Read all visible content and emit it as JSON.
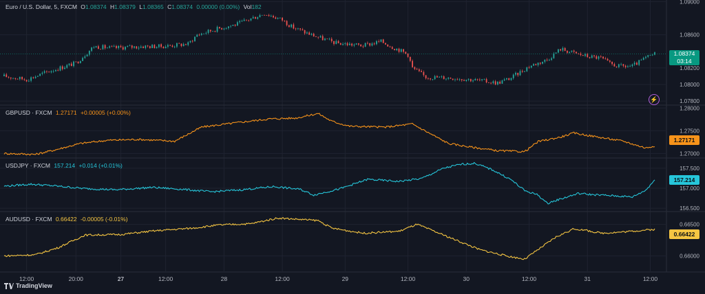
{
  "legend": {
    "eurusd": {
      "title": "Euro / U.S. Dollar, 5, FXCM",
      "O": "O",
      "o": "1.08374",
      "H": "H",
      "h": "1.08379",
      "L": "L",
      "l": "1.08365",
      "C": "C",
      "c": "1.08374",
      "chg": "0.00000 (0.00%)",
      "vol_label": "Vol",
      "vol": "182"
    },
    "gbpusd": {
      "title": "GBPUSD · FXCM",
      "price": "1.27171",
      "chg": "+0.00005 (+0.00%)"
    },
    "usdjpy": {
      "title": "USDJPY · FXCM",
      "price": "157.214",
      "chg": "+0.014 (+0.01%)"
    },
    "audusd": {
      "title": "AUDUSD · FXCM",
      "price": "0.66422",
      "chg": "-0.00005 (-0.01%)"
    }
  },
  "price_badges": {
    "eurusd": {
      "price": "1.08374",
      "timer": "03:14",
      "color": "#089981"
    },
    "gbpusd": {
      "price": "1.27171",
      "color": "#f7931a"
    },
    "usdjpy": {
      "price": "157.214",
      "color": "#26c6da"
    },
    "audusd": {
      "price": "0.66422",
      "color": "#f5c542"
    }
  },
  "branding": "TradingView",
  "chart_data": [
    {
      "type": "candlestick",
      "name": "EURUSD",
      "yticks": [
        "1.09000",
        "1.08600",
        "1.08200",
        "1.08000",
        "1.07800"
      ],
      "ytick_values": [
        1.09,
        1.086,
        1.082,
        1.08,
        1.078
      ],
      "ylim": [
        1.0776,
        1.0902
      ],
      "values": [
        [
          0,
          1.081
        ],
        [
          5,
          1.0806
        ],
        [
          10,
          1.0816
        ],
        [
          16,
          1.0826
        ],
        [
          20,
          1.0846
        ],
        [
          24,
          1.0844
        ],
        [
          27,
          1.0845
        ],
        [
          31,
          1.0846
        ],
        [
          35,
          1.0846
        ],
        [
          41,
          1.0849
        ],
        [
          43,
          1.086
        ],
        [
          48,
          1.0868
        ],
        [
          52,
          1.0873
        ],
        [
          58,
          1.0886
        ],
        [
          62,
          1.0878
        ],
        [
          64,
          1.087
        ],
        [
          67,
          1.0863
        ],
        [
          70,
          1.0857
        ],
        [
          74,
          1.085
        ],
        [
          80,
          1.0847
        ],
        [
          84,
          1.0852
        ],
        [
          87,
          1.0844
        ],
        [
          88,
          1.0842
        ],
        [
          90,
          1.0836
        ],
        [
          91,
          1.082
        ],
        [
          94,
          1.0809
        ],
        [
          100,
          1.0808
        ],
        [
          104,
          1.0806
        ],
        [
          110,
          1.0802
        ],
        [
          113,
          1.0808
        ],
        [
          117,
          1.0822
        ],
        [
          121,
          1.083
        ],
        [
          124,
          1.0843
        ],
        [
          127,
          1.0838
        ],
        [
          130,
          1.0834
        ],
        [
          133,
          1.0832
        ],
        [
          135,
          1.0825
        ],
        [
          137,
          1.0822
        ],
        [
          140,
          1.0822
        ],
        [
          143,
          1.0832
        ],
        [
          145,
          1.0837
        ]
      ],
      "color_up": "#26a69a",
      "color_down": "#ef5350"
    },
    {
      "type": "line",
      "name": "GBPUSD",
      "color": "#f7931a",
      "yticks": [
        "1.28000",
        "1.27500",
        "1.27000"
      ],
      "ytick_values": [
        1.28,
        1.275,
        1.27
      ],
      "ylim": [
        1.2693,
        1.2805
      ],
      "values": [
        [
          0,
          1.27
        ],
        [
          7,
          1.2698
        ],
        [
          11,
          1.2707
        ],
        [
          17,
          1.2722
        ],
        [
          23,
          1.2729
        ],
        [
          30,
          1.2731
        ],
        [
          38,
          1.2727
        ],
        [
          44,
          1.2758
        ],
        [
          52,
          1.2768
        ],
        [
          59,
          1.2776
        ],
        [
          65,
          1.2778
        ],
        [
          70,
          1.2788
        ],
        [
          73,
          1.2771
        ],
        [
          77,
          1.276
        ],
        [
          85,
          1.2758
        ],
        [
          91,
          1.2765
        ],
        [
          96,
          1.2738
        ],
        [
          99,
          1.2722
        ],
        [
          104,
          1.2714
        ],
        [
          110,
          1.2706
        ],
        [
          116,
          1.2704
        ],
        [
          119,
          1.2726
        ],
        [
          124,
          1.2736
        ],
        [
          127,
          1.2745
        ],
        [
          130,
          1.274
        ],
        [
          133,
          1.2735
        ],
        [
          138,
          1.2727
        ],
        [
          143,
          1.2712
        ],
        [
          145,
          1.2717
        ]
      ]
    },
    {
      "type": "line",
      "name": "USDJPY",
      "color": "#26c6da",
      "yticks": [
        "157.500",
        "157.000",
        "156.500"
      ],
      "ytick_values": [
        157.5,
        157.0,
        156.5
      ],
      "ylim": [
        156.45,
        157.72
      ],
      "values": [
        [
          0,
          157.05
        ],
        [
          6,
          157.1
        ],
        [
          11,
          157.06
        ],
        [
          18,
          156.99
        ],
        [
          25,
          156.96
        ],
        [
          33,
          157.02
        ],
        [
          40,
          156.97
        ],
        [
          46,
          156.91
        ],
        [
          53,
          156.96
        ],
        [
          60,
          157.04
        ],
        [
          66,
          156.97
        ],
        [
          69,
          156.83
        ],
        [
          75,
          156.99
        ],
        [
          81,
          157.22
        ],
        [
          88,
          157.17
        ],
        [
          93,
          157.24
        ],
        [
          98,
          157.5
        ],
        [
          102,
          157.6
        ],
        [
          105,
          157.62
        ],
        [
          109,
          157.45
        ],
        [
          113,
          157.21
        ],
        [
          116,
          156.94
        ],
        [
          119,
          156.83
        ],
        [
          121,
          156.62
        ],
        [
          124,
          156.73
        ],
        [
          128,
          156.87
        ],
        [
          131,
          156.84
        ],
        [
          136,
          156.81
        ],
        [
          140,
          156.78
        ],
        [
          143,
          156.95
        ],
        [
          145,
          157.21
        ]
      ]
    },
    {
      "type": "line",
      "name": "AUDUSD",
      "color": "#f5c542",
      "yticks": [
        "0.66500",
        "0.66000"
      ],
      "ytick_values": [
        0.665,
        0.66
      ],
      "ylim": [
        0.6592,
        0.6668
      ],
      "values": [
        [
          0,
          0.66
        ],
        [
          7,
          0.6602
        ],
        [
          12,
          0.6613
        ],
        [
          18,
          0.6633
        ],
        [
          26,
          0.6634
        ],
        [
          34,
          0.664
        ],
        [
          42,
          0.6644
        ],
        [
          48,
          0.6649
        ],
        [
          55,
          0.6651
        ],
        [
          61,
          0.666
        ],
        [
          70,
          0.6656
        ],
        [
          73,
          0.6644
        ],
        [
          80,
          0.6636
        ],
        [
          88,
          0.6639
        ],
        [
          92,
          0.665
        ],
        [
          99,
          0.663
        ],
        [
          106,
          0.661
        ],
        [
          112,
          0.66
        ],
        [
          116,
          0.6595
        ],
        [
          119,
          0.661
        ],
        [
          123,
          0.663
        ],
        [
          127,
          0.6643
        ],
        [
          130,
          0.664
        ],
        [
          133,
          0.6636
        ],
        [
          138,
          0.6638
        ],
        [
          143,
          0.6641
        ],
        [
          145,
          0.6642
        ]
      ]
    }
  ],
  "x_axis": {
    "labels": [
      "12:00",
      "20:00",
      "27",
      "12:00",
      "28",
      "12:00",
      "29",
      "12:00",
      "30",
      "12:00",
      "31",
      "12:00"
    ],
    "label_index": [
      5,
      16,
      26,
      36,
      49,
      62,
      76,
      90,
      103,
      117,
      130,
      144
    ],
    "bold": [
      false,
      false,
      true,
      false,
      false,
      false,
      false,
      false,
      false,
      false,
      false,
      false
    ]
  }
}
